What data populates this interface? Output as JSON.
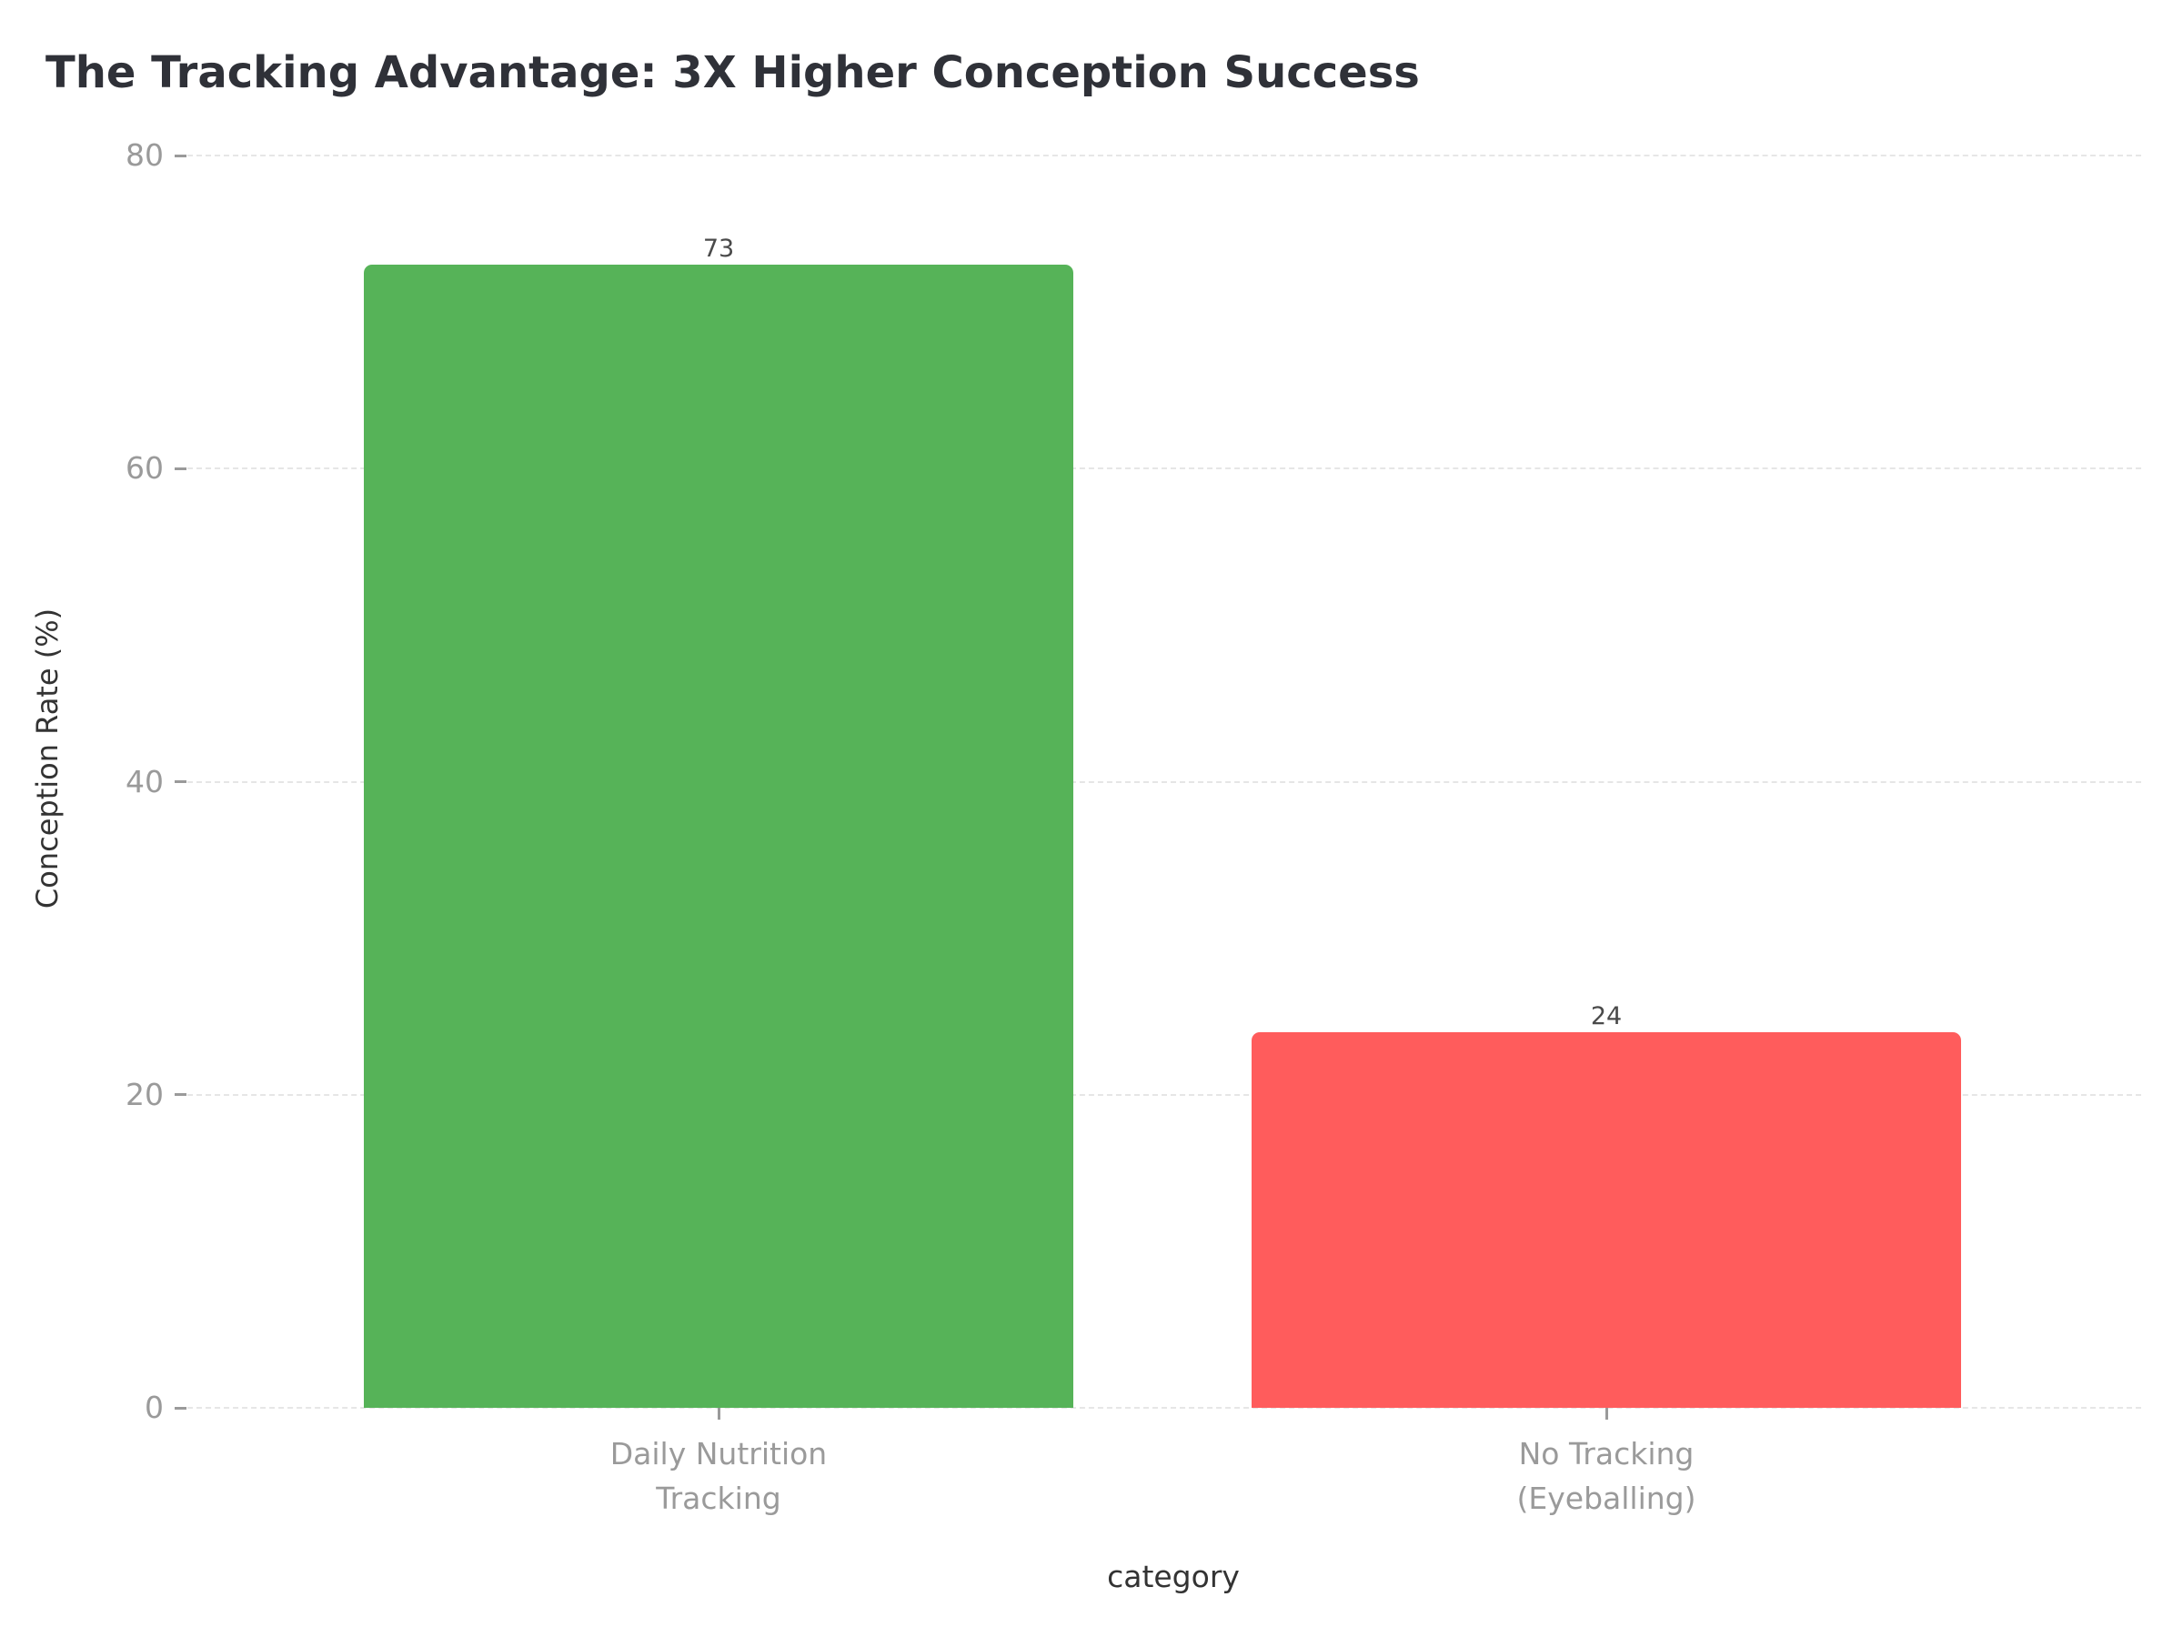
{
  "chart_data": {
    "type": "bar",
    "title": "The Tracking Advantage: 3X Higher Conception Success",
    "xlabel": "category",
    "ylabel": "Conception Rate (%)",
    "categories": [
      "Daily Nutrition\nTracking",
      "No Tracking\n(Eyeballing)"
    ],
    "category_lines": [
      [
        "Daily Nutrition",
        "Tracking"
      ],
      [
        "No Tracking",
        "(Eyeballing)"
      ]
    ],
    "values": [
      73,
      24
    ],
    "value_labels": [
      "73",
      "24"
    ],
    "colors": [
      "#56b358",
      "#ff5c5c"
    ],
    "ylim": [
      0,
      80
    ],
    "yticks": [
      0,
      20,
      40,
      60,
      80
    ],
    "ytick_labels": [
      "0",
      "20",
      "40",
      "60",
      "80"
    ],
    "grid": true,
    "grid_style": "dashed horizontal",
    "legend": null
  }
}
